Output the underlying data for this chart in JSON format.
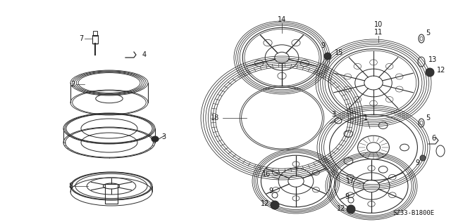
{
  "bg_color": "#ffffff",
  "fig_width": 6.4,
  "fig_height": 3.19,
  "dpi": 100,
  "diagram_code": "SZ33-B1800E",
  "line_color": "#2a2a2a",
  "text_color": "#111111",
  "font_size": 7.0
}
